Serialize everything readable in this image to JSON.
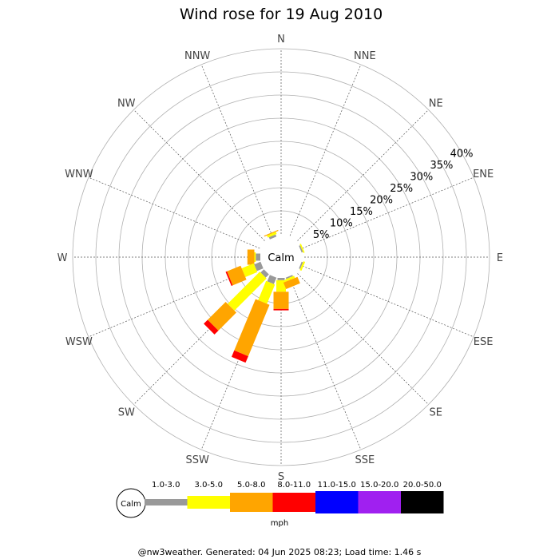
{
  "chart_data": {
    "type": "wind-rose",
    "title": "Wind rose for 19 Aug 2010",
    "directions": [
      "N",
      "NNE",
      "NE",
      "ENE",
      "E",
      "ESE",
      "SE",
      "SSE",
      "S",
      "SSW",
      "SW",
      "WSW",
      "W",
      "WNW",
      "NW",
      "NNW"
    ],
    "radial_ticks": [
      "5%",
      "10%",
      "15%",
      "20%",
      "25%",
      "30%",
      "35%",
      "40%"
    ],
    "radial_max_percent": 40,
    "calm_label": "Calm",
    "unit_label": "mph",
    "speed_bins": [
      {
        "label": "1.0-3.0",
        "color": "#999999"
      },
      {
        "label": "3.0-5.0",
        "color": "#ffff00"
      },
      {
        "label": "5.0-8.0",
        "color": "#ffa500"
      },
      {
        "label": "8.0-11.0",
        "color": "#ff0000"
      },
      {
        "label": "11.0-15.0",
        "color": "#0000ff"
      },
      {
        "label": "15.0-20.0",
        "color": "#a020f0"
      },
      {
        "label": "20.0-50.0",
        "color": "#000000"
      }
    ],
    "series": [
      {
        "direction": "NNW",
        "values": [
          0.5,
          0.5,
          0.2,
          0,
          0,
          0,
          0
        ]
      },
      {
        "direction": "W",
        "values": [
          1.0,
          0.3,
          1.5,
          0,
          0,
          0,
          0
        ]
      },
      {
        "direction": "WSW",
        "values": [
          1.5,
          2.8,
          3.2,
          0.3,
          0,
          0,
          0
        ]
      },
      {
        "direction": "SW",
        "values": [
          1.0,
          9.8,
          5.5,
          1.2,
          0,
          0,
          0
        ]
      },
      {
        "direction": "SSW",
        "values": [
          1.5,
          4.5,
          12.0,
          1.5,
          0,
          0,
          0
        ]
      },
      {
        "direction": "S",
        "values": [
          0.5,
          2.5,
          3.7,
          0.3,
          0,
          0,
          0
        ]
      },
      {
        "direction": "SSE",
        "values": [
          0.3,
          0.5,
          1.5,
          0,
          0,
          0,
          0
        ]
      },
      {
        "direction": "ESE",
        "values": [
          0.3,
          0.4,
          0,
          0,
          0,
          0,
          0
        ]
      },
      {
        "direction": "ENE",
        "values": [
          0.3,
          0.3,
          0,
          0,
          0,
          0,
          0
        ]
      }
    ]
  },
  "footer": "@nw3weather. Generated: 04 Jun 2025 08:23; Load time: 1.46 s"
}
